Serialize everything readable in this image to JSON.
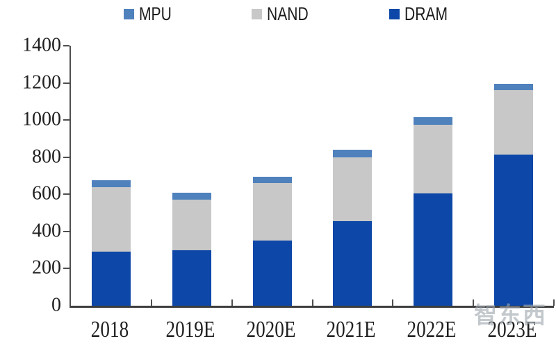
{
  "chart_data": {
    "type": "bar",
    "stacked": true,
    "title": "",
    "xlabel": "",
    "ylabel": "",
    "categories": [
      "2018",
      "2019E",
      "2020E",
      "2021E",
      "2022E",
      "2023E"
    ],
    "series": [
      {
        "name": "MPU",
        "color": "#4f81bd",
        "values": [
          35,
          40,
          35,
          40,
          40,
          35
        ]
      },
      {
        "name": "NAND",
        "color": "#c8c8c8",
        "texture": "speckle",
        "values": [
          350,
          270,
          310,
          345,
          370,
          345
        ]
      },
      {
        "name": "DRAM",
        "color": "#0d47a8",
        "values": [
          290,
          300,
          350,
          455,
          605,
          815
        ]
      }
    ],
    "stack_order_bottom_to_top": [
      "DRAM",
      "NAND",
      "MPU"
    ],
    "totals": [
      675,
      610,
      695,
      840,
      1015,
      1195
    ],
    "ylim": [
      0,
      1400
    ],
    "yticks": [
      0,
      200,
      400,
      600,
      800,
      1000,
      1200,
      1400
    ],
    "grid": false,
    "legend_position": "top"
  },
  "watermark": {
    "text": "智东西"
  }
}
